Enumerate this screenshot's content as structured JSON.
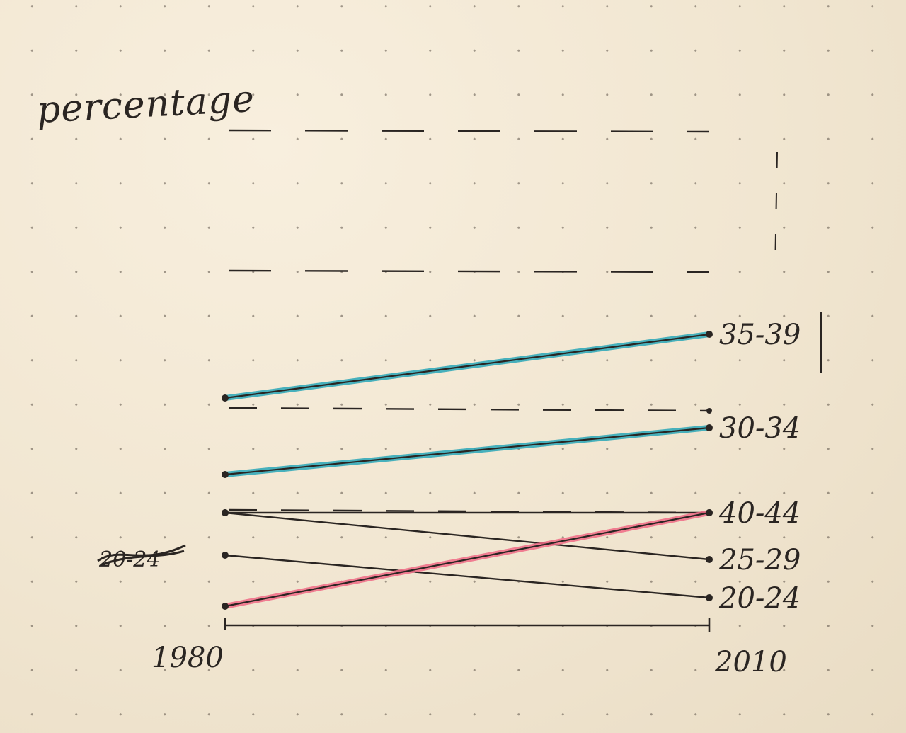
{
  "chart_data": {
    "type": "line",
    "ylabel": "percentage",
    "xlabel": "",
    "x": [
      "1980",
      "2010"
    ],
    "grid": "dashed horizontal reference lines",
    "series": [
      {
        "name": "35-39",
        "values": [
          4.3,
          5.8
        ],
        "color": "#2aa7b8"
      },
      {
        "name": "30-34",
        "values": [
          2.5,
          3.6
        ],
        "color": "#2aa7b8"
      },
      {
        "name": "40-44",
        "values": [
          1.6,
          1.6
        ],
        "color": "#2a2522"
      },
      {
        "name": "25-29",
        "values": [
          1.6,
          0.5
        ],
        "color": "#2a2522"
      },
      {
        "name": "20-24",
        "values": [
          0.6,
          -0.4
        ],
        "color": "#2a2522"
      },
      {
        "name": "",
        "values": [
          -0.6,
          1.6
        ],
        "color": "#f06b86"
      }
    ],
    "reference_lines": [
      4.0,
      1.6
    ],
    "upper_reference_lines": [
      7.3,
      10.6
    ],
    "crossed_out_label": "20-24"
  }
}
